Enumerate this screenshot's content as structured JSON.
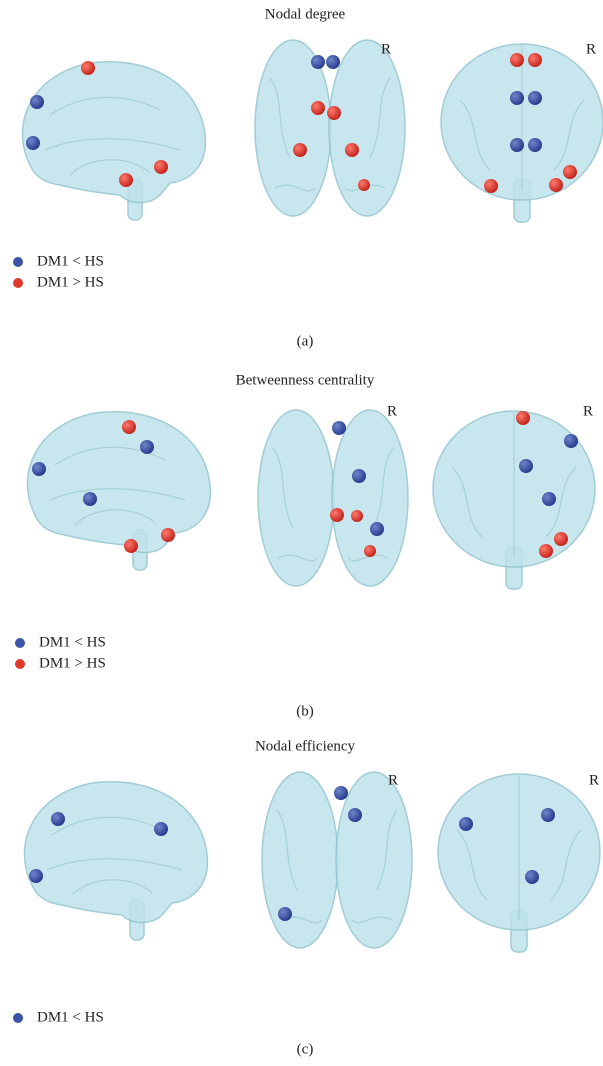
{
  "panels": [
    {
      "title": "Nodal degree",
      "r_labels": [
        "R",
        "R"
      ],
      "legend": [
        "DM1 < HS",
        "DM1 > HS"
      ],
      "caption": "(a)"
    },
    {
      "title": "Betweenness centrality",
      "r_labels": [
        "R",
        "R"
      ],
      "legend": [
        "DM1 < HS",
        "DM1 > HS"
      ],
      "caption": "(b)"
    },
    {
      "title": "Nodal efficiency",
      "r_labels": [
        "R",
        "R"
      ],
      "legend": [
        "DM1 < HS"
      ],
      "caption": "(c)"
    }
  ]
}
